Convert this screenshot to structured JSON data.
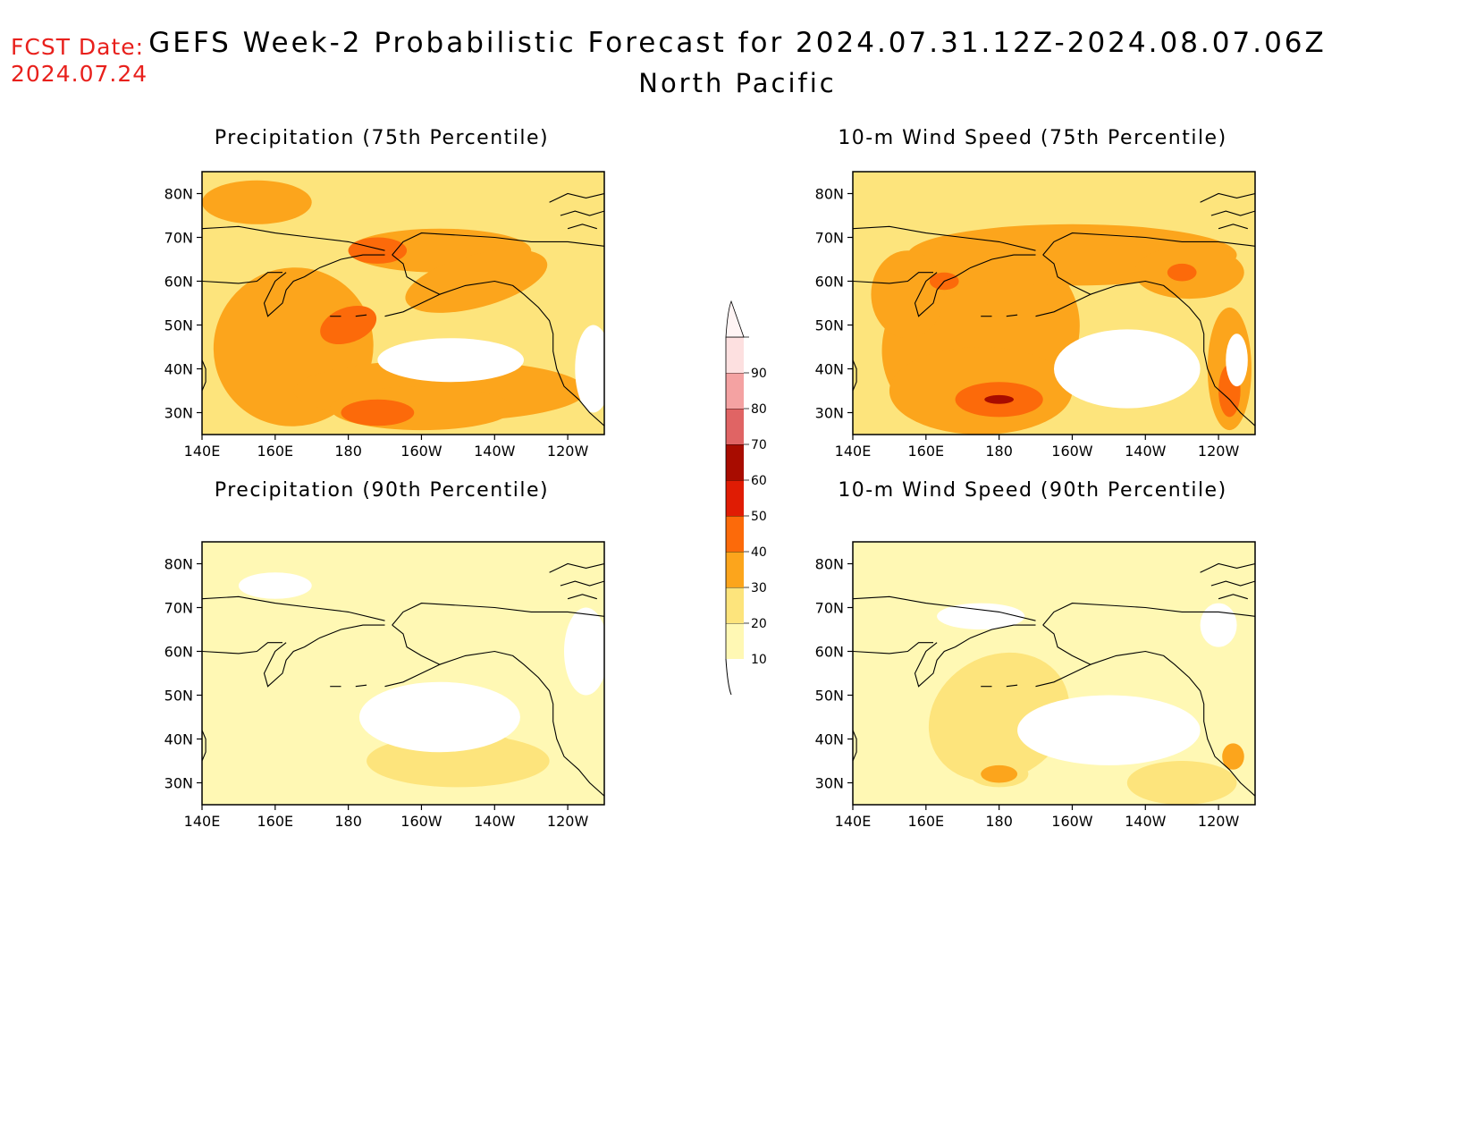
{
  "header": {
    "fcst_label": "FCST Date:",
    "fcst_date": "2024.07.24",
    "title": "GEFS Week-2 Probabilistic Forecast for 2024.07.31.12Z-2024.08.07.06Z",
    "subtitle": "North Pacific"
  },
  "panels": [
    {
      "id": "p1",
      "title": "Precipitation (75th Percentile)",
      "intensity": "high"
    },
    {
      "id": "p2",
      "title": "10-m Wind Speed (75th Percentile)",
      "intensity": "high"
    },
    {
      "id": "p3",
      "title": "Precipitation (90th Percentile)",
      "intensity": "low"
    },
    {
      "id": "p4",
      "title": "10-m Wind Speed (90th Percentile)",
      "intensity": "low"
    }
  ],
  "axes": {
    "lat_labels": [
      "80N",
      "70N",
      "60N",
      "50N",
      "40N",
      "30N"
    ],
    "lon_labels": [
      "140E",
      "160E",
      "180",
      "160W",
      "140W",
      "120W"
    ],
    "lat_range": [
      25,
      85
    ],
    "lon_range": [
      140,
      250
    ]
  },
  "colorbar": {
    "levels": [
      "10",
      "20",
      "30",
      "40",
      "50",
      "60",
      "70",
      "80",
      "90"
    ],
    "colors": [
      "#fff8b4",
      "#fde47c",
      "#fca51c",
      "#fc6a0a",
      "#e01c04",
      "#a80c00",
      "#e06464",
      "#f4a2a2",
      "#fde0e0"
    ]
  }
}
